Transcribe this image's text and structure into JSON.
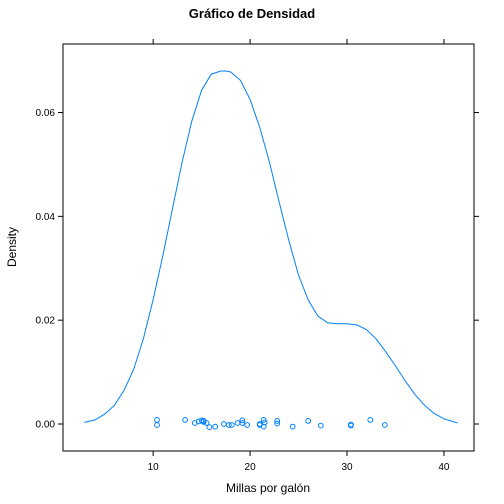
{
  "chart_data": {
    "type": "line",
    "title": "Gráfico de Densidad",
    "xlabel": "Millas por galón",
    "ylabel": "Density",
    "xlim": [
      0.7,
      43.1
    ],
    "ylim": [
      -0.0052,
      0.0732
    ],
    "x_ticks": [
      10,
      20,
      30,
      40
    ],
    "y_ticks": [
      0.0,
      0.02,
      0.04,
      0.06
    ],
    "y_tick_labels": [
      "0.00",
      "0.02",
      "0.04",
      "0.06"
    ],
    "line_color": "#0080ff",
    "series": [
      {
        "type": "line",
        "x": [
          2.9,
          4,
          5,
          6,
          7,
          8,
          9,
          10,
          11,
          12,
          13,
          14,
          15,
          16,
          17,
          17.5,
          18,
          19,
          20,
          21,
          22,
          23,
          24,
          25,
          26,
          27,
          28,
          29,
          30,
          31,
          32,
          33,
          34,
          35,
          36,
          37,
          38,
          39,
          40,
          41.4
        ],
        "y": [
          0.0003,
          0.0008,
          0.0019,
          0.0036,
          0.0065,
          0.0106,
          0.0165,
          0.0239,
          0.0324,
          0.0415,
          0.0505,
          0.0584,
          0.0643,
          0.0674,
          0.068,
          0.068,
          0.0678,
          0.0662,
          0.0625,
          0.0571,
          0.0504,
          0.0427,
          0.0353,
          0.0287,
          0.0239,
          0.0208,
          0.0195,
          0.0193,
          0.0193,
          0.0191,
          0.0182,
          0.0164,
          0.0139,
          0.0112,
          0.0083,
          0.0057,
          0.0036,
          0.002,
          0.001,
          0.0002
        ]
      },
      {
        "type": "points",
        "x": [
          10.4,
          10.4,
          13.3,
          14.3,
          14.7,
          15.0,
          15.2,
          15.2,
          15.5,
          15.8,
          16.4,
          17.3,
          17.8,
          18.1,
          18.7,
          19.2,
          19.2,
          19.7,
          21.0,
          21.0,
          21.4,
          21.4,
          21.5,
          22.8,
          22.8,
          24.4,
          26.0,
          27.3,
          30.4,
          30.4,
          32.4,
          33.9
        ],
        "y": [
          0.0008,
          -0.0002,
          0.0008,
          0.0002,
          0.0005,
          0.0007,
          0.0006,
          0.0004,
          0.0002,
          -0.0006,
          -0.0005,
          0.0,
          -0.0002,
          -0.0002,
          0.0002,
          0.0007,
          0.0002,
          -0.0002,
          0.0,
          -0.0002,
          0.0008,
          -0.0005,
          0.0003,
          0.0006,
          0.0001,
          -0.0005,
          0.0006,
          -0.0003,
          -0.0001,
          -0.0003,
          0.0008,
          -0.0002
        ]
      }
    ]
  }
}
